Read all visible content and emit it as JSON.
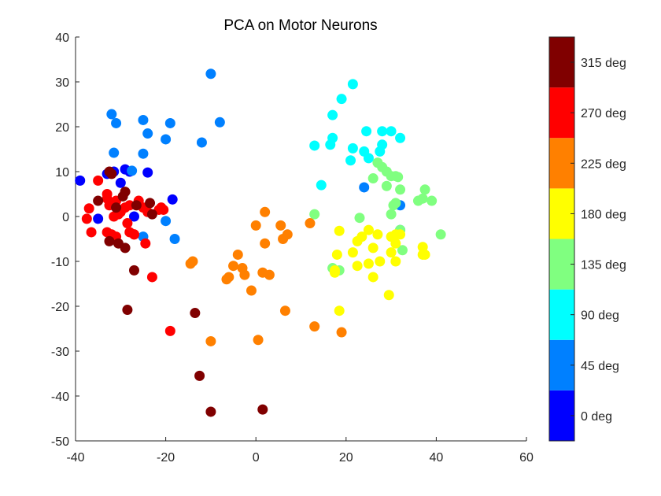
{
  "chart_data": {
    "type": "scatter",
    "title": "PCA on Motor Neurons",
    "xlabel": "",
    "ylabel": "",
    "xlim": [
      -40,
      60
    ],
    "ylim": [
      -50,
      40
    ],
    "xticks": [
      -40,
      -20,
      0,
      20,
      40,
      60
    ],
    "yticks": [
      -50,
      -40,
      -30,
      -20,
      -10,
      0,
      10,
      20,
      30,
      40
    ],
    "grid": false,
    "legend": "colorbar-right",
    "colorbar": {
      "labels": [
        "0 deg",
        "45 deg",
        "90 deg",
        "135 deg",
        "180 deg",
        "225 deg",
        "270 deg",
        "315 deg"
      ],
      "colors": [
        "#0000ff",
        "#0080ff",
        "#00ffff",
        "#80ff80",
        "#ffff00",
        "#ff8000",
        "#ff0000",
        "#800000"
      ]
    },
    "series": [
      {
        "label": "0 deg",
        "points": [
          [
            -39,
            8
          ],
          [
            -35,
            -0.5
          ],
          [
            -33,
            9.5
          ],
          [
            -31.5,
            10
          ],
          [
            -30,
            7.5
          ],
          [
            -29,
            10.5
          ],
          [
            -28,
            10
          ],
          [
            -24,
            9.8
          ],
          [
            -27,
            0
          ],
          [
            -18.5,
            3.8
          ]
        ]
      },
      {
        "label": "45 deg",
        "points": [
          [
            -32,
            22.8
          ],
          [
            -31,
            20.8
          ],
          [
            -31.5,
            14.2
          ],
          [
            -25,
            21.5
          ],
          [
            -24,
            18.5
          ],
          [
            -25,
            14
          ],
          [
            -19,
            20.8
          ],
          [
            -20,
            17.2
          ],
          [
            -10,
            31.8
          ],
          [
            -8,
            21
          ],
          [
            -12,
            16.5
          ],
          [
            -27.5,
            10.2
          ],
          [
            -25,
            -4.5
          ],
          [
            -20,
            -1
          ],
          [
            -18,
            -5
          ],
          [
            24,
            6.5
          ],
          [
            32,
            2.5
          ],
          [
            32,
            -3
          ]
        ]
      },
      {
        "label": "90 deg",
        "points": [
          [
            21.5,
            29.5
          ],
          [
            19,
            26.2
          ],
          [
            17,
            22.6
          ],
          [
            13,
            15.8
          ],
          [
            16.5,
            16
          ],
          [
            17,
            17.5
          ],
          [
            21,
            12.5
          ],
          [
            21.5,
            15.2
          ],
          [
            24,
            14.5
          ],
          [
            24.5,
            19
          ],
          [
            27.5,
            14.5
          ],
          [
            28,
            16
          ],
          [
            28,
            19
          ],
          [
            30,
            19
          ],
          [
            32,
            17.5
          ],
          [
            25,
            13
          ],
          [
            14.5,
            7
          ]
        ]
      },
      {
        "label": "135 deg",
        "points": [
          [
            13,
            0.5
          ],
          [
            23,
            -0.3
          ],
          [
            26,
            8.5
          ],
          [
            27,
            12
          ],
          [
            28,
            11
          ],
          [
            29,
            10
          ],
          [
            30,
            9
          ],
          [
            31,
            9
          ],
          [
            31.5,
            8.8
          ],
          [
            32,
            6
          ],
          [
            29,
            6.8
          ],
          [
            31,
            3
          ],
          [
            30.5,
            2.5
          ],
          [
            30,
            0.5
          ],
          [
            32,
            -3
          ],
          [
            32.5,
            -7.5
          ],
          [
            36,
            3.5
          ],
          [
            37,
            4
          ],
          [
            37.5,
            6
          ],
          [
            39,
            3.5
          ],
          [
            41,
            -4
          ],
          [
            17,
            -11.5
          ],
          [
            18.5,
            -12
          ]
        ]
      },
      {
        "label": "180 deg",
        "points": [
          [
            18.5,
            -3.2
          ],
          [
            21.5,
            -8
          ],
          [
            22.5,
            -5.5
          ],
          [
            23.5,
            -4.5
          ],
          [
            25,
            -3
          ],
          [
            27,
            -4
          ],
          [
            30,
            -4.5
          ],
          [
            31,
            -4
          ],
          [
            32,
            -4
          ],
          [
            31,
            -6
          ],
          [
            26,
            -7
          ],
          [
            30,
            -8
          ],
          [
            31,
            -10
          ],
          [
            18,
            -8.5
          ],
          [
            17.5,
            -12
          ],
          [
            17.5,
            -12.5
          ],
          [
            22.5,
            -11
          ],
          [
            25,
            -10.5
          ],
          [
            27.5,
            -10
          ],
          [
            26,
            -13.5
          ],
          [
            29.5,
            -17.5
          ],
          [
            37,
            -8.5
          ],
          [
            37.5,
            -8.5
          ],
          [
            37,
            -6.8
          ],
          [
            18.5,
            -21
          ]
        ]
      },
      {
        "label": "225 deg",
        "points": [
          [
            -14,
            -10
          ],
          [
            -14.5,
            -10.5
          ],
          [
            -4,
            -8.5
          ],
          [
            -5,
            -11
          ],
          [
            -6,
            -13.5
          ],
          [
            -6.5,
            -14
          ],
          [
            -2.5,
            -13
          ],
          [
            -3,
            -11.5
          ],
          [
            -1,
            -16.5
          ],
          [
            0,
            -2
          ],
          [
            2,
            1
          ],
          [
            2,
            -6
          ],
          [
            3,
            -13
          ],
          [
            1.5,
            -12.5
          ],
          [
            5.5,
            -2
          ],
          [
            6,
            -5
          ],
          [
            7,
            -4
          ],
          [
            12,
            -1.5
          ],
          [
            6.5,
            -21
          ],
          [
            13,
            -24.5
          ],
          [
            19,
            -25.8
          ],
          [
            0.5,
            -27.5
          ],
          [
            -10,
            -27.8
          ]
        ]
      },
      {
        "label": "270 deg",
        "points": [
          [
            -35,
            8
          ],
          [
            -37,
            1.8
          ],
          [
            -37.5,
            -0.5
          ],
          [
            -36.5,
            -3.5
          ],
          [
            -33,
            5
          ],
          [
            -33,
            4
          ],
          [
            -32.5,
            2.5
          ],
          [
            -31,
            3.5
          ],
          [
            -31.5,
            0
          ],
          [
            -30.5,
            0.5
          ],
          [
            -30,
            1
          ],
          [
            -29,
            2
          ],
          [
            -28,
            2.5
          ],
          [
            -28.5,
            -1.5
          ],
          [
            -33,
            -3.5
          ],
          [
            -32,
            -4
          ],
          [
            -31,
            -4.5
          ],
          [
            -28,
            -3.5
          ],
          [
            -27,
            -4
          ],
          [
            -26,
            3.5
          ],
          [
            -25,
            2
          ],
          [
            -24,
            1
          ],
          [
            -24.5,
            -6
          ],
          [
            -21.5,
            1.5
          ],
          [
            -21,
            2
          ],
          [
            -20.5,
            1.5
          ],
          [
            -23,
            -13.5
          ],
          [
            -19,
            -25.5
          ],
          [
            -27,
            -4
          ]
        ]
      },
      {
        "label": "315 deg",
        "points": [
          [
            -32.5,
            10
          ],
          [
            -32,
            9.5
          ],
          [
            -35,
            3.5
          ],
          [
            -31,
            2
          ],
          [
            -29.5,
            4.5
          ],
          [
            -29,
            5.5
          ],
          [
            -26.5,
            2.5
          ],
          [
            -23.5,
            3
          ],
          [
            -23,
            0.5
          ],
          [
            -32.5,
            -5.5
          ],
          [
            -30.5,
            -6
          ],
          [
            -29,
            -7
          ],
          [
            -27,
            -12
          ],
          [
            -28.5,
            -20.8
          ],
          [
            -13.5,
            -21.5
          ],
          [
            -12.5,
            -35.5
          ],
          [
            -10,
            -43.5
          ],
          [
            1.5,
            -43
          ]
        ]
      }
    ]
  }
}
